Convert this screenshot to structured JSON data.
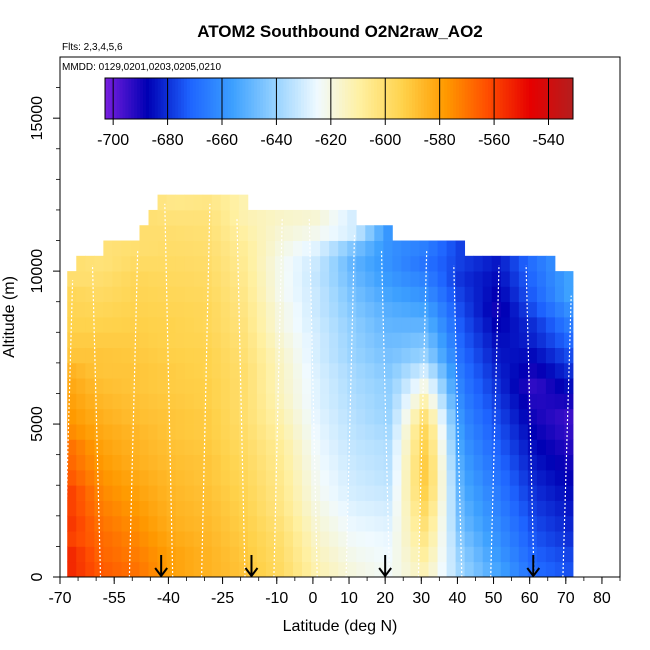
{
  "chart_data": {
    "type": "heatmap",
    "title": "ATOM2 Southbound O2N2raw_AO2",
    "flights_note": "Flts: 2,3,4,5,6",
    "date_note": "MMDD: 0129,0201,0203,0205,0210",
    "xlabel": "Latitude (deg N)",
    "ylabel": "Altitude (m)",
    "xlim": [
      -70,
      85
    ],
    "ylim": [
      0,
      17000
    ],
    "x_ticks": [
      -70,
      -55,
      -40,
      -25,
      -10,
      0,
      10,
      20,
      30,
      40,
      50,
      60,
      70,
      80
    ],
    "x_tick_labels": [
      "-70",
      "-55",
      "-40",
      "-25",
      "-10",
      "0",
      "10",
      "20",
      "30",
      "40",
      "50",
      "60",
      "70",
      "80"
    ],
    "y_ticks": [
      0,
      5000,
      10000,
      15000
    ],
    "y_tick_labels": [
      "0",
      "5000",
      "10000",
      "15000"
    ],
    "colorbar": {
      "range": [
        -703,
        -531
      ],
      "ticks": [
        -700,
        -680,
        -660,
        -640,
        -620,
        -600,
        -580,
        -560,
        -540
      ],
      "tick_labels": [
        "-700",
        "-680",
        "-660",
        "-640",
        "-620",
        "-600",
        "-580",
        "-560",
        "-540"
      ],
      "colors": [
        "#7a1fe0",
        "#0000b4",
        "#1e64ff",
        "#3ca0ff",
        "#96d2ff",
        "#f0faff",
        "#fff0a0",
        "#ffd24b",
        "#ff9a00",
        "#ff4d00",
        "#e60000",
        "#b41e1e"
      ]
    },
    "arrow_latitudes": [
      -42,
      -17,
      20,
      61
    ],
    "bin_width_deg": 2.5,
    "bin_height_m": 500,
    "profiles": [
      {
        "lat": -68,
        "top": 10000,
        "values": [
          -555,
          -555,
          -560,
          -558,
          -560,
          -560,
          -565,
          -568,
          -570,
          -575,
          -578,
          -580,
          -582,
          -585,
          -590,
          -592,
          -594,
          -595,
          -596,
          -600
        ]
      },
      {
        "lat": -60,
        "top": 10500,
        "values": [
          -565,
          -567,
          -568,
          -570,
          -572,
          -574,
          -576,
          -578,
          -580,
          -582,
          -584,
          -586,
          -588,
          -590,
          -590,
          -592,
          -594,
          -596,
          -598,
          -600,
          -602
        ]
      },
      {
        "lat": -50,
        "top": 11000,
        "values": [
          -570,
          -572,
          -574,
          -576,
          -578,
          -580,
          -582,
          -584,
          -585,
          -586,
          -588,
          -589,
          -590,
          -590,
          -591,
          -592,
          -593,
          -594,
          -595,
          -596,
          -598,
          -600
        ]
      },
      {
        "lat": -40,
        "top": 12500,
        "values": [
          -580,
          -580,
          -582,
          -584,
          -585,
          -586,
          -587,
          -588,
          -589,
          -590,
          -590,
          -591,
          -592,
          -592,
          -593,
          -594,
          -594,
          -595,
          -596,
          -597,
          -598,
          -599,
          -600,
          -602,
          -605
        ]
      },
      {
        "lat": -30,
        "top": 12500,
        "values": [
          -585,
          -585,
          -586,
          -587,
          -588,
          -589,
          -590,
          -590,
          -591,
          -592,
          -592,
          -593,
          -593,
          -594,
          -594,
          -595,
          -596,
          -596,
          -597,
          -598,
          -599,
          -600,
          -601,
          -602,
          -604
        ]
      },
      {
        "lat": -20,
        "top": 12000,
        "values": [
          -590,
          -591,
          -592,
          -593,
          -594,
          -595,
          -596,
          -597,
          -598,
          -599,
          -600,
          -600,
          -600,
          -600,
          -601,
          -602,
          -603,
          -604,
          -605,
          -606,
          -607,
          -608,
          -610,
          -612
        ]
      },
      {
        "lat": -10,
        "top": 12000,
        "values": [
          -598,
          -599,
          -600,
          -602,
          -604,
          -605,
          -606,
          -607,
          -608,
          -610,
          -612,
          -614,
          -615,
          -615,
          -616,
          -618,
          -620,
          -620,
          -622,
          -622,
          -622,
          -620,
          -618,
          -616
        ]
      },
      {
        "lat": 0,
        "top": 12000,
        "values": [
          -612,
          -614,
          -616,
          -618,
          -620,
          -622,
          -623,
          -624,
          -625,
          -626,
          -627,
          -628,
          -628,
          -629,
          -630,
          -630,
          -631,
          -632,
          -632,
          -633,
          -632,
          -628,
          -622,
          -618
        ]
      },
      {
        "lat": 10,
        "top": 11500,
        "values": [
          -620,
          -622,
          -624,
          -626,
          -628,
          -630,
          -631,
          -632,
          -633,
          -634,
          -635,
          -636,
          -637,
          -638,
          -640,
          -641,
          -642,
          -644,
          -646,
          -648,
          -650,
          -645,
          -630
        ]
      },
      {
        "lat": 20,
        "top": 11000,
        "values": [
          -624,
          -625,
          -626,
          -628,
          -630,
          -632,
          -634,
          -635,
          -636,
          -638,
          -640,
          -641,
          -642,
          -644,
          -646,
          -648,
          -650,
          -652,
          -655,
          -658,
          -660,
          -660
        ]
      },
      {
        "lat": 30,
        "top": 11000,
        "values": [
          -612,
          -608,
          -604,
          -600,
          -596,
          -592,
          -590,
          -590,
          -592,
          -594,
          -600,
          -610,
          -620,
          -630,
          -640,
          -645,
          -650,
          -655,
          -660,
          -664,
          -668,
          -665
        ]
      },
      {
        "lat": 40,
        "top": 10500,
        "values": [
          -640,
          -642,
          -645,
          -648,
          -650,
          -652,
          -654,
          -656,
          -658,
          -660,
          -662,
          -664,
          -666,
          -668,
          -670,
          -672,
          -674,
          -676,
          -678,
          -680,
          -678
        ]
      },
      {
        "lat": 50,
        "top": 10500,
        "values": [
          -655,
          -658,
          -660,
          -662,
          -664,
          -666,
          -668,
          -670,
          -672,
          -674,
          -676,
          -678,
          -680,
          -682,
          -684,
          -686,
          -688,
          -690,
          -688,
          -686,
          -684
        ]
      },
      {
        "lat": 60,
        "top": 10500,
        "values": [
          -670,
          -672,
          -674,
          -676,
          -678,
          -680,
          -682,
          -684,
          -686,
          -688,
          -690,
          -692,
          -694,
          -690,
          -686,
          -682,
          -680,
          -675,
          -672,
          -670,
          -668
        ]
      },
      {
        "lat": 70,
        "top": 9500,
        "values": [
          -675,
          -677,
          -680,
          -682,
          -684,
          -686,
          -688,
          -690,
          -692,
          -694,
          -695,
          -690,
          -685,
          -680,
          -675,
          -670,
          -665,
          -660,
          -655
        ]
      }
    ]
  }
}
